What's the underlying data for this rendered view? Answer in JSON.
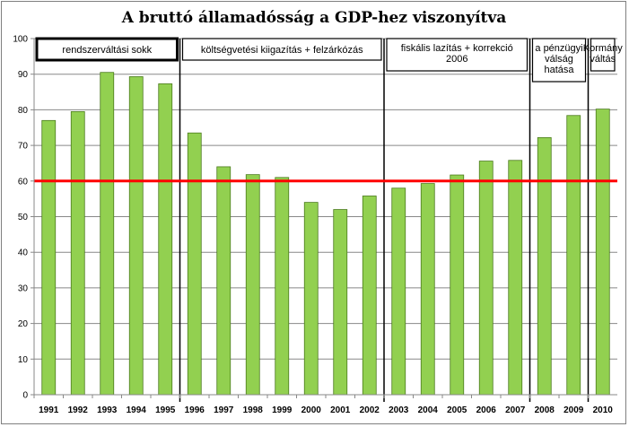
{
  "chart_data": {
    "type": "bar",
    "title": "A bruttó államadósság a GDP-hez viszonyítva",
    "categories": [
      "1991",
      "1992",
      "1993",
      "1994",
      "1995",
      "1996",
      "1997",
      "1998",
      "1999",
      "2000",
      "2001",
      "2002",
      "2003",
      "2004",
      "2005",
      "2006",
      "2007",
      "2008",
      "2009",
      "2010"
    ],
    "values": [
      77,
      79.5,
      90.5,
      89.3,
      87.3,
      73.5,
      64,
      61.8,
      61,
      54,
      52,
      55.8,
      58,
      59.3,
      61.7,
      65.6,
      65.8,
      72.2,
      78.4,
      80.2
    ],
    "ylim": [
      0,
      100
    ],
    "yticks": [
      0,
      10,
      20,
      30,
      40,
      50,
      60,
      70,
      80,
      90,
      100
    ],
    "grid": true,
    "bar_color": "#92d050",
    "reference_line": {
      "value": 60,
      "color": "#ff0000"
    },
    "period_dividers": [
      1995.5,
      2002.5,
      2007.5,
      2009.5
    ],
    "annotations": [
      {
        "lines": [
          "rendszerváltási sokk"
        ],
        "from": "1991",
        "to": "1995",
        "bold_border": true
      },
      {
        "lines": [
          "költségvetési kiigazítás + felzárkózás"
        ],
        "from": "1996",
        "to": "2002",
        "bold_border": false
      },
      {
        "lines": [
          "fiskális lazítás + korrekció",
          "2006"
        ],
        "from": "2003",
        "to": "2007",
        "bold_border": false
      },
      {
        "lines": [
          "a pénzügyi",
          "válság",
          "hatása"
        ],
        "from": "2008",
        "to": "2009",
        "bold_border": false
      },
      {
        "lines": [
          "Kormány",
          "váltás"
        ],
        "from": "2010",
        "to": "2010",
        "bold_border": false
      }
    ]
  }
}
